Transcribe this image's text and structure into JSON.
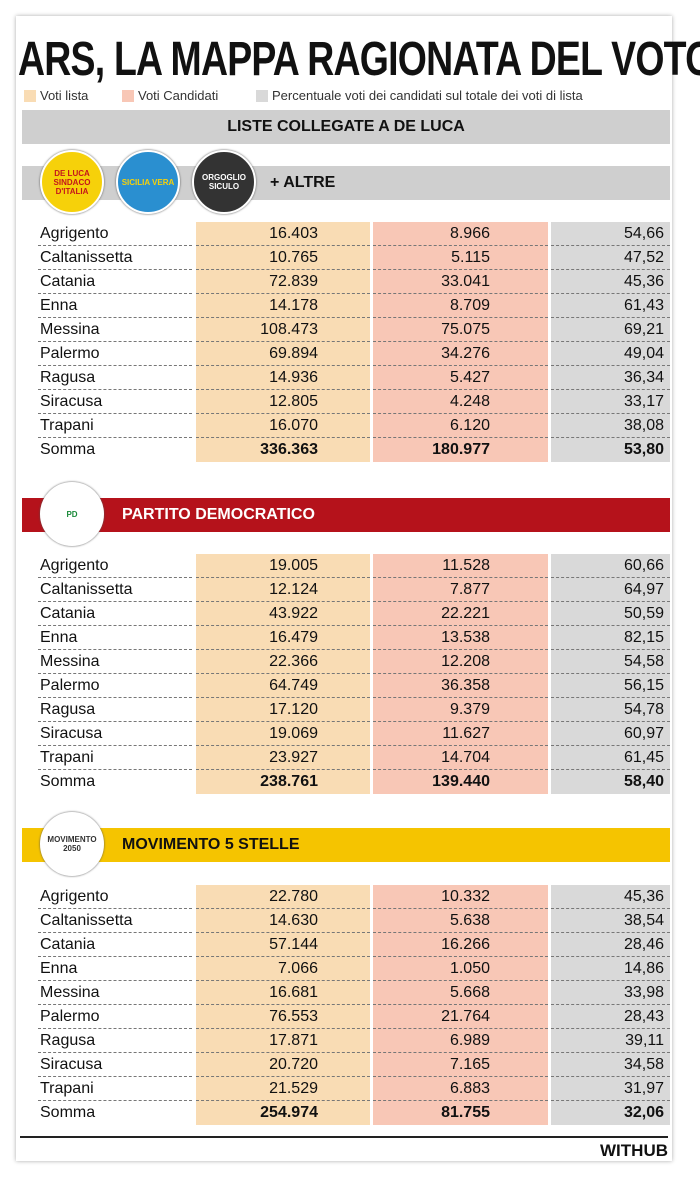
{
  "header": {
    "title": "ARS, LA MAPPA RAGIONATA DEL VOTO",
    "legend": [
      "Voti lista",
      "Voti Candidati",
      "Percentuale voti dei candidati sul totale dei voti di lista"
    ],
    "group": "LISTE COLLEGATE A DE LUCA"
  },
  "sections": [
    {
      "name": "+ ALTRE",
      "logos": [
        "DE LUCA SINDACO D'ITALIA",
        "SICILIA VERA",
        "ORGOGLIO SICULO"
      ],
      "rows": [
        [
          "Agrigento",
          "16.403",
          "8.966",
          "54,66"
        ],
        [
          "Caltanissetta",
          "10.765",
          "5.115",
          "47,52"
        ],
        [
          "Catania",
          "72.839",
          "33.041",
          "45,36"
        ],
        [
          "Enna",
          "14.178",
          "8.709",
          "61,43"
        ],
        [
          "Messina",
          "108.473",
          "75.075",
          "69,21"
        ],
        [
          "Palermo",
          "69.894",
          "34.276",
          "49,04"
        ],
        [
          "Ragusa",
          "14.936",
          "5.427",
          "36,34"
        ],
        [
          "Siracusa",
          "12.805",
          "4.248",
          "33,17"
        ],
        [
          "Trapani",
          "16.070",
          "6.120",
          "38,08"
        ],
        [
          "Somma",
          "336.363",
          "180.977",
          "53,80"
        ]
      ]
    },
    {
      "name": "PARTITO DEMOCRATICO",
      "logos": [
        "PD"
      ],
      "rows": [
        [
          "Agrigento",
          "19.005",
          "11.528",
          "60,66"
        ],
        [
          "Caltanissetta",
          "12.124",
          "7.877",
          "64,97"
        ],
        [
          "Catania",
          "43.922",
          "22.221",
          "50,59"
        ],
        [
          "Enna",
          "16.479",
          "13.538",
          "82,15"
        ],
        [
          "Messina",
          "22.366",
          "12.208",
          "54,58"
        ],
        [
          "Palermo",
          "64.749",
          "36.358",
          "56,15"
        ],
        [
          "Ragusa",
          "17.120",
          "9.379",
          "54,78"
        ],
        [
          "Siracusa",
          "19.069",
          "11.627",
          "60,97"
        ],
        [
          "Trapani",
          "23.927",
          "14.704",
          "61,45"
        ],
        [
          "Somma",
          "238.761",
          "139.440",
          "58,40"
        ]
      ]
    },
    {
      "name": "MOVIMENTO 5 STELLE",
      "logos": [
        "MOVIMENTO 2050"
      ],
      "rows": [
        [
          "Agrigento",
          "22.780",
          "10.332",
          "45,36"
        ],
        [
          "Caltanissetta",
          "14.630",
          "5.638",
          "38,54"
        ],
        [
          "Catania",
          "57.144",
          "16.266",
          "28,46"
        ],
        [
          "Enna",
          "7.066",
          "1.050",
          "14,86"
        ],
        [
          "Messina",
          "16.681",
          "5.668",
          "33,98"
        ],
        [
          "Palermo",
          "76.553",
          "21.764",
          "28,43"
        ],
        [
          "Ragusa",
          "17.871",
          "6.989",
          "39,11"
        ],
        [
          "Siracusa",
          "20.720",
          "7.165",
          "34,58"
        ],
        [
          "Trapani",
          "21.529",
          "6.883",
          "31,97"
        ],
        [
          "Somma",
          "254.974",
          "81.755",
          "32,06"
        ]
      ]
    }
  ],
  "footer": {
    "brand": "WITHUB"
  }
}
